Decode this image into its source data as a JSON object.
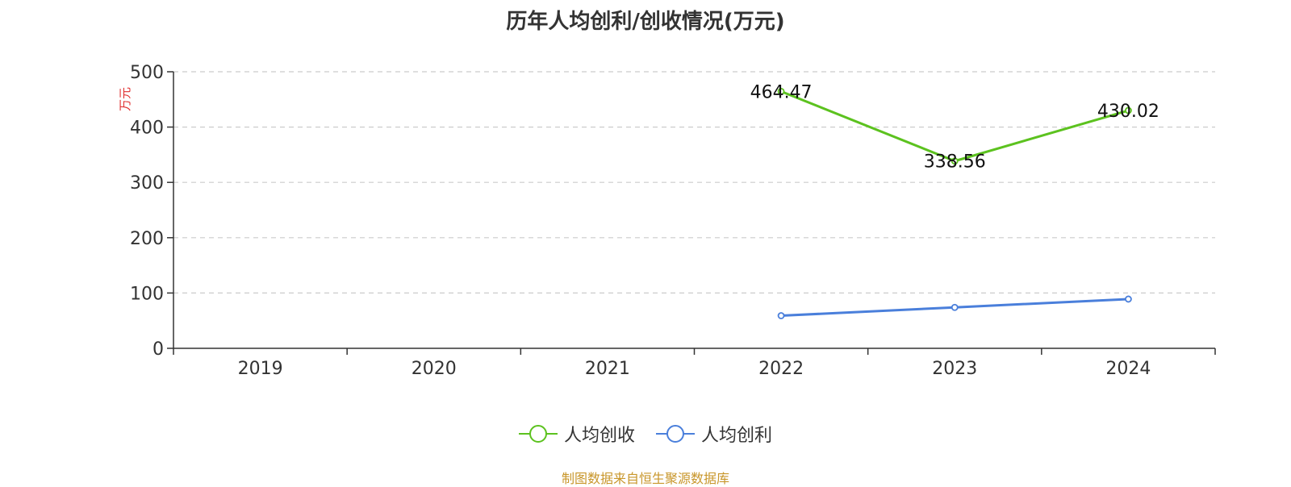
{
  "title": "历年人均创利/创收情况(万元)",
  "source": "制图数据来自恒生聚源数据库",
  "chart_data": {
    "type": "line",
    "title": "历年人均创利/创收情况(万元)",
    "ylabel": "万元",
    "xlabel": "",
    "ylim": [
      0,
      500
    ],
    "yticks": [
      0,
      100,
      200,
      300,
      400,
      500
    ],
    "grid": true,
    "legend_position": "bottom",
    "categories": [
      "2019",
      "2020",
      "2021",
      "2022",
      "2023",
      "2024"
    ],
    "series": [
      {
        "name": "人均创收",
        "color": "#5cc21f",
        "values": [
          null,
          null,
          null,
          464.47,
          338.56,
          430.02
        ],
        "labels": [
          "",
          "",
          "",
          "464.47",
          "338.56",
          "430.02"
        ]
      },
      {
        "name": "人均创利",
        "color": "#4a7fdb",
        "values": [
          null,
          null,
          null,
          59,
          74,
          89
        ],
        "labels": [
          "",
          "",
          "",
          "",
          "",
          ""
        ]
      }
    ]
  }
}
